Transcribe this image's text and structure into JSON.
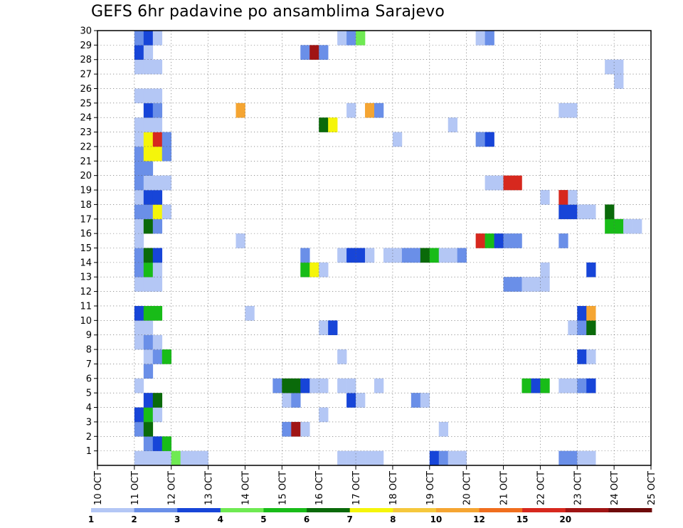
{
  "title": "GEFS 6hr padavine po ansamblima Sarajevo",
  "chart_data": {
    "type": "heatmap",
    "title": "GEFS 6hr padavine po ansamblima Sarajevo",
    "x_ticks": [
      "10 OCT",
      "11 OCT",
      "12 OCT",
      "13 OCT",
      "14 OCT",
      "15 OCT",
      "16 OCT",
      "17 OCT",
      "18 OCT",
      "19 OCT",
      "20 OCT",
      "21 OCT",
      "22 OCT",
      "23 OCT",
      "24 OCT",
      "25 OCT"
    ],
    "y_ticks": [
      1,
      2,
      3,
      4,
      5,
      6,
      7,
      8,
      9,
      10,
      11,
      12,
      13,
      14,
      15,
      16,
      17,
      18,
      19,
      20,
      21,
      22,
      23,
      24,
      25,
      26,
      27,
      28,
      29,
      30
    ],
    "x_range_steps": [
      0,
      60
    ],
    "y_range": [
      0,
      30
    ],
    "grid": true,
    "colorbar": {
      "labels": [
        "1",
        "2",
        "3",
        "4",
        "5",
        "6",
        "7",
        "8",
        "10",
        "12",
        "15",
        "20"
      ],
      "colors": [
        "#b4c7f5",
        "#6a8fe8",
        "#1745d8",
        "#6fea52",
        "#18bc18",
        "#0a6a0a",
        "#f5f50a",
        "#f5c83c",
        "#f5a532",
        "#f06e1e",
        "#d7281e",
        "#a01414",
        "#6e0a0a"
      ]
    },
    "cells_note": "each cell: [time step (6h from 10 OCT 00Z), member, category index 0-12]",
    "cells": [
      [
        4,
        0,
        0
      ],
      [
        5,
        0,
        0
      ],
      [
        6,
        0,
        0
      ],
      [
        7,
        0,
        0
      ],
      [
        8,
        0,
        3
      ],
      [
        9,
        0,
        0
      ],
      [
        10,
        0,
        0
      ],
      [
        11,
        0,
        0
      ],
      [
        26,
        0,
        0
      ],
      [
        27,
        0,
        0
      ],
      [
        28,
        0,
        0
      ],
      [
        29,
        0,
        0
      ],
      [
        30,
        0,
        0
      ],
      [
        36,
        0,
        2
      ],
      [
        37,
        0,
        1
      ],
      [
        38,
        0,
        0
      ],
      [
        39,
        0,
        0
      ],
      [
        50,
        0,
        1
      ],
      [
        51,
        0,
        1
      ],
      [
        52,
        0,
        0
      ],
      [
        53,
        0,
        0
      ],
      [
        5,
        1,
        1
      ],
      [
        6,
        1,
        2
      ],
      [
        7,
        1,
        4
      ],
      [
        4,
        2,
        1
      ],
      [
        5,
        2,
        5
      ],
      [
        20,
        2,
        1
      ],
      [
        21,
        2,
        11
      ],
      [
        22,
        2,
        0
      ],
      [
        37,
        2,
        0
      ],
      [
        4,
        3,
        2
      ],
      [
        5,
        3,
        4
      ],
      [
        6,
        3,
        0
      ],
      [
        24,
        3,
        0
      ],
      [
        5,
        4,
        2
      ],
      [
        6,
        4,
        5
      ],
      [
        20,
        4,
        0
      ],
      [
        21,
        4,
        1
      ],
      [
        27,
        4,
        2
      ],
      [
        28,
        4,
        0
      ],
      [
        34,
        4,
        1
      ],
      [
        35,
        4,
        0
      ],
      [
        4,
        5,
        0
      ],
      [
        19,
        5,
        1
      ],
      [
        20,
        5,
        5
      ],
      [
        21,
        5,
        5
      ],
      [
        22,
        5,
        2
      ],
      [
        23,
        5,
        0
      ],
      [
        24,
        5,
        0
      ],
      [
        26,
        5,
        0
      ],
      [
        27,
        5,
        0
      ],
      [
        30,
        5,
        0
      ],
      [
        46,
        5,
        4
      ],
      [
        47,
        5,
        2
      ],
      [
        48,
        5,
        4
      ],
      [
        50,
        5,
        0
      ],
      [
        51,
        5,
        0
      ],
      [
        52,
        5,
        1
      ],
      [
        53,
        5,
        2
      ],
      [
        5,
        6,
        1
      ],
      [
        5,
        7,
        0
      ],
      [
        6,
        7,
        1
      ],
      [
        7,
        7,
        4
      ],
      [
        26,
        7,
        0
      ],
      [
        52,
        7,
        2
      ],
      [
        53,
        7,
        0
      ],
      [
        4,
        8,
        0
      ],
      [
        5,
        8,
        1
      ],
      [
        6,
        8,
        0
      ],
      [
        4,
        9,
        0
      ],
      [
        5,
        9,
        0
      ],
      [
        24,
        9,
        0
      ],
      [
        25,
        9,
        2
      ],
      [
        51,
        9,
        0
      ],
      [
        52,
        9,
        1
      ],
      [
        53,
        9,
        5
      ],
      [
        4,
        10,
        2
      ],
      [
        5,
        10,
        4
      ],
      [
        6,
        10,
        4
      ],
      [
        16,
        10,
        0
      ],
      [
        52,
        10,
        2
      ],
      [
        53,
        10,
        8
      ],
      [
        4,
        12,
        0
      ],
      [
        5,
        12,
        0
      ],
      [
        6,
        12,
        0
      ],
      [
        44,
        12,
        1
      ],
      [
        45,
        12,
        1
      ],
      [
        46,
        12,
        0
      ],
      [
        47,
        12,
        0
      ],
      [
        48,
        12,
        0
      ],
      [
        4,
        13,
        1
      ],
      [
        5,
        13,
        4
      ],
      [
        6,
        13,
        0
      ],
      [
        22,
        13,
        4
      ],
      [
        23,
        13,
        6
      ],
      [
        24,
        13,
        0
      ],
      [
        48,
        13,
        0
      ],
      [
        53,
        13,
        2
      ],
      [
        4,
        14,
        1
      ],
      [
        5,
        14,
        5
      ],
      [
        6,
        14,
        2
      ],
      [
        22,
        14,
        1
      ],
      [
        26,
        14,
        0
      ],
      [
        27,
        14,
        2
      ],
      [
        28,
        14,
        2
      ],
      [
        29,
        14,
        0
      ],
      [
        31,
        14,
        0
      ],
      [
        32,
        14,
        0
      ],
      [
        33,
        14,
        1
      ],
      [
        34,
        14,
        1
      ],
      [
        35,
        14,
        5
      ],
      [
        36,
        14,
        4
      ],
      [
        37,
        14,
        0
      ],
      [
        38,
        14,
        0
      ],
      [
        39,
        14,
        1
      ],
      [
        4,
        15,
        0
      ],
      [
        15,
        15,
        0
      ],
      [
        41,
        15,
        10
      ],
      [
        42,
        15,
        4
      ],
      [
        43,
        15,
        2
      ],
      [
        44,
        15,
        1
      ],
      [
        45,
        15,
        1
      ],
      [
        50,
        15,
        1
      ],
      [
        4,
        16,
        0
      ],
      [
        5,
        16,
        5
      ],
      [
        6,
        16,
        1
      ],
      [
        55,
        16,
        4
      ],
      [
        56,
        16,
        4
      ],
      [
        57,
        16,
        0
      ],
      [
        58,
        16,
        0
      ],
      [
        4,
        17,
        1
      ],
      [
        5,
        17,
        1
      ],
      [
        6,
        17,
        6
      ],
      [
        7,
        17,
        0
      ],
      [
        50,
        17,
        2
      ],
      [
        51,
        17,
        2
      ],
      [
        52,
        17,
        0
      ],
      [
        53,
        17,
        0
      ],
      [
        55,
        17,
        5
      ],
      [
        4,
        18,
        0
      ],
      [
        5,
        18,
        2
      ],
      [
        6,
        18,
        2
      ],
      [
        48,
        18,
        0
      ],
      [
        50,
        18,
        10
      ],
      [
        51,
        18,
        0
      ],
      [
        4,
        19,
        1
      ],
      [
        5,
        19,
        0
      ],
      [
        6,
        19,
        0
      ],
      [
        7,
        19,
        0
      ],
      [
        7,
        19,
        0
      ],
      [
        42,
        19,
        0
      ],
      [
        43,
        19,
        0
      ],
      [
        44,
        19,
        10
      ],
      [
        45,
        19,
        10
      ],
      [
        4,
        20,
        1
      ],
      [
        5,
        20,
        1
      ],
      [
        4,
        21,
        1
      ],
      [
        5,
        21,
        6
      ],
      [
        6,
        21,
        6
      ],
      [
        7,
        21,
        1
      ],
      [
        4,
        22,
        0
      ],
      [
        5,
        22,
        6
      ],
      [
        6,
        22,
        10
      ],
      [
        7,
        22,
        1
      ],
      [
        32,
        22,
        0
      ],
      [
        41,
        22,
        1
      ],
      [
        42,
        22,
        2
      ],
      [
        4,
        23,
        0
      ],
      [
        5,
        23,
        0
      ],
      [
        6,
        23,
        0
      ],
      [
        24,
        23,
        5
      ],
      [
        25,
        23,
        6
      ],
      [
        38,
        23,
        0
      ],
      [
        5,
        24,
        2
      ],
      [
        6,
        24,
        1
      ],
      [
        15,
        24,
        8
      ],
      [
        27,
        24,
        0
      ],
      [
        29,
        24,
        8
      ],
      [
        30,
        24,
        1
      ],
      [
        50,
        24,
        0
      ],
      [
        51,
        24,
        0
      ],
      [
        4,
        25,
        0
      ],
      [
        5,
        25,
        0
      ],
      [
        6,
        25,
        0
      ],
      [
        56,
        26,
        0
      ],
      [
        55,
        27,
        0
      ],
      [
        56,
        27,
        0
      ],
      [
        4,
        27,
        0
      ],
      [
        5,
        27,
        0
      ],
      [
        6,
        27,
        0
      ],
      [
        4,
        28,
        2
      ],
      [
        5,
        28,
        0
      ],
      [
        22,
        28,
        1
      ],
      [
        23,
        28,
        11
      ],
      [
        24,
        28,
        1
      ],
      [
        4,
        29,
        1
      ],
      [
        5,
        29,
        2
      ],
      [
        6,
        29,
        0
      ],
      [
        26,
        29,
        0
      ],
      [
        27,
        29,
        1
      ],
      [
        28,
        29,
        3
      ],
      [
        41,
        29,
        0
      ],
      [
        42,
        29,
        1
      ]
    ]
  }
}
